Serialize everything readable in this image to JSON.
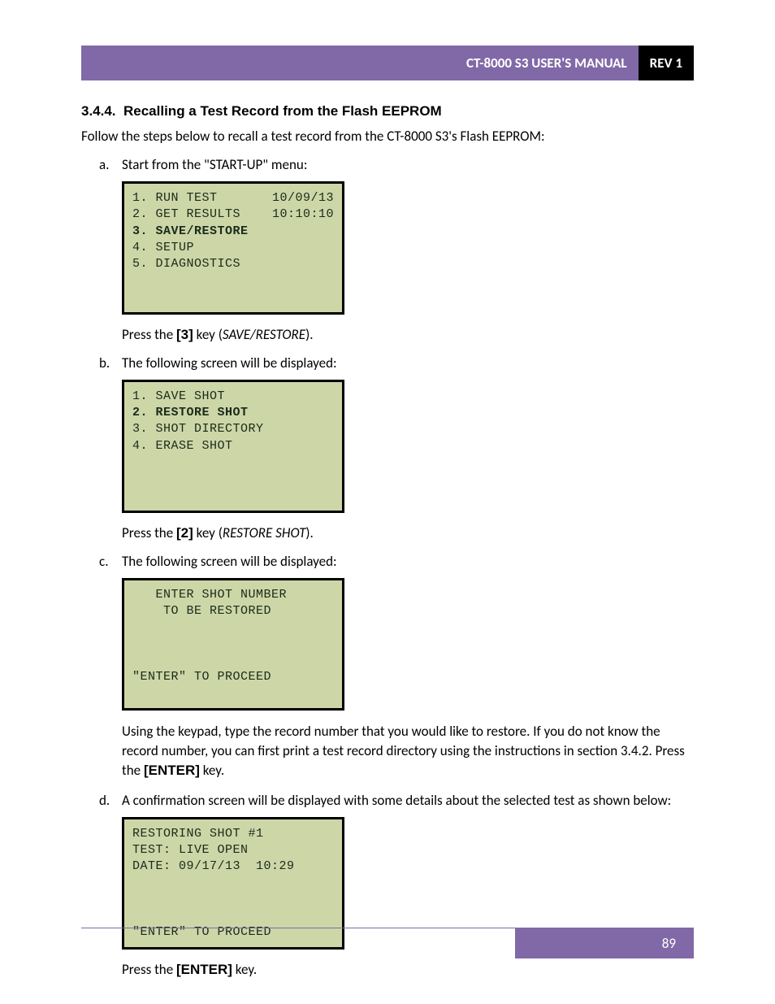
{
  "header": {
    "title": "CT-8000 S3 USER'S MANUAL",
    "rev": "REV 1"
  },
  "section": {
    "number": "3.4.4.",
    "title": "Recalling a Test Record from the Flash EEPROM"
  },
  "intro": "Follow the steps below to recall a test record from the CT-8000 S3's Flash EEPROM:",
  "steps": {
    "a": {
      "marker": "a.",
      "pre": "Start from the \"START-UP\" menu:",
      "screen": {
        "lines": [
          {
            "left": "1. RUN TEST",
            "right": "10/09/13",
            "bold": false
          },
          {
            "left": "2. GET RESULTS",
            "right": "10:10:10",
            "bold": false
          },
          {
            "left": "3. SAVE/RESTORE",
            "right": "",
            "bold": true
          },
          {
            "left": "4. SETUP",
            "right": "",
            "bold": false
          },
          {
            "left": "5. DIAGNOSTICS",
            "right": "",
            "bold": false
          },
          {
            "left": " ",
            "right": "",
            "bold": false
          },
          {
            "left": " ",
            "right": "",
            "bold": false
          }
        ]
      },
      "post_pre": "Press the ",
      "post_key": "[3]",
      "post_mid": " key (",
      "post_italic": "SAVE/RESTORE",
      "post_end": ")."
    },
    "b": {
      "marker": "b.",
      "pre": "The following screen will be displayed:",
      "screen": {
        "lines": [
          {
            "left": "1. SAVE SHOT",
            "right": "",
            "bold": false
          },
          {
            "left": "2. RESTORE SHOT",
            "right": "",
            "bold": true
          },
          {
            "left": "3. SHOT DIRECTORY",
            "right": "",
            "bold": false
          },
          {
            "left": "4. ERASE SHOT",
            "right": "",
            "bold": false
          },
          {
            "left": " ",
            "right": "",
            "bold": false
          },
          {
            "left": " ",
            "right": "",
            "bold": false
          },
          {
            "left": " ",
            "right": "",
            "bold": false
          }
        ]
      },
      "post_pre": "Press the ",
      "post_key": "[2]",
      "post_mid": " key (",
      "post_italic": "RESTORE SHOT",
      "post_end": ")."
    },
    "c": {
      "marker": "c.",
      "pre": "The following screen will be displayed:",
      "screen": {
        "lines": [
          {
            "left": "   ENTER SHOT NUMBER",
            "right": "",
            "bold": false
          },
          {
            "left": "    TO BE RESTORED",
            "right": "",
            "bold": false
          },
          {
            "left": " ",
            "right": "",
            "bold": false
          },
          {
            "left": " ",
            "right": "",
            "bold": false
          },
          {
            "left": " ",
            "right": "",
            "bold": false
          },
          {
            "left": "\"ENTER\" TO PROCEED",
            "right": "",
            "bold": false
          },
          {
            "left": " ",
            "right": "",
            "bold": false
          }
        ]
      },
      "body_pre": "Using the keypad, type the record number that you would like to restore. If you do not know the record number, you can first print a test record directory using the instructions in section 3.4.2. Press the ",
      "body_key": "[ENTER]",
      "body_end": " key."
    },
    "d": {
      "marker": "d.",
      "pre": "A confirmation screen will be displayed with some details about the selected test as shown below:",
      "screen": {
        "lines": [
          {
            "left": "RESTORING SHOT #1",
            "right": "",
            "bold": false
          },
          {
            "left": "TEST: LIVE OPEN",
            "right": "",
            "bold": false
          },
          {
            "left": "DATE: 09/17/13  10:29",
            "right": "",
            "bold": false
          },
          {
            "left": " ",
            "right": "",
            "bold": false
          },
          {
            "left": " ",
            "right": "",
            "bold": false
          },
          {
            "left": " ",
            "right": "",
            "bold": false
          },
          {
            "left": "\"ENTER\" TO PROCEED",
            "right": "",
            "bold": false
          }
        ]
      },
      "post_pre": "Press the ",
      "post_key": "[ENTER]",
      "post_end": " key."
    }
  },
  "footer": {
    "page": "89"
  },
  "colors": {
    "purple": "#8169a8",
    "lcd_bg": "#cdd6a7",
    "black": "#000000",
    "white": "#ffffff"
  }
}
